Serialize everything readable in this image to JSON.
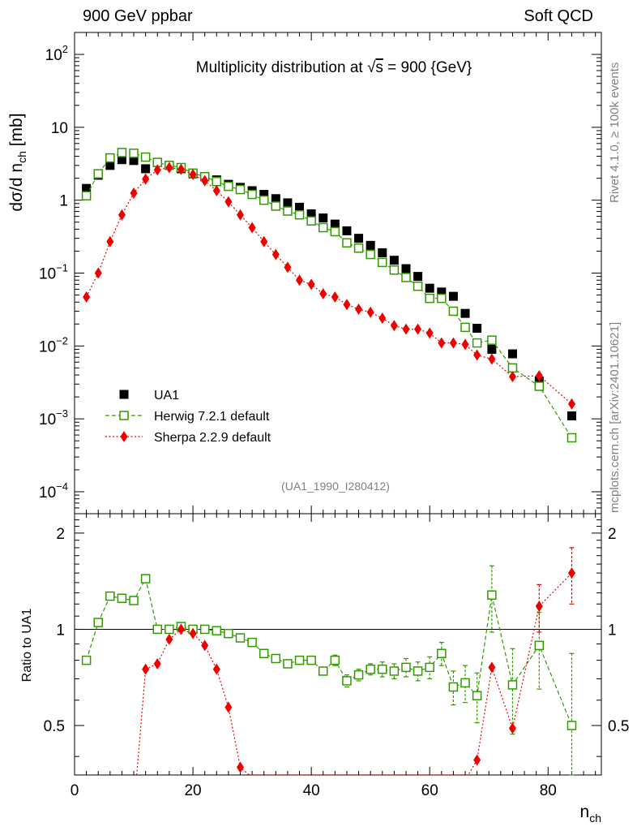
{
  "chart_data": {
    "type": "scatter",
    "title": "Multiplicity distribution at √s = 900 {GeV}",
    "title_prefix": "Multiplicity distribution at ",
    "title_sqrt": "√",
    "title_s": "s",
    "title_suffix": " = 900 {GeV}",
    "header_left": "900 GeV ppbar",
    "header_right": "Soft QCD",
    "side_top": "Rivet 4.1.0, ≥ 100k events",
    "side_bottom": "mcplots.cern.ch [arXiv:2401.10621]",
    "analysis_id": "(UA1_1990_I280412)",
    "ylabel_main_a": "dσ/d n",
    "ylabel_main_sub": "ch",
    "ylabel_main_b": " [mb]",
    "ylabel_ratio": "Ratio to UA1",
    "xlabel": "n",
    "xlabel_sub": "ch",
    "xlim": [
      0,
      89
    ],
    "ylim_main": [
      5e-05,
      200
    ],
    "ylim_ratio": [
      0.35,
      2.3
    ],
    "x_ticks": [
      0,
      20,
      40,
      60,
      80
    ],
    "x_tick_labels": [
      "0",
      "20",
      "40",
      "60",
      "80"
    ],
    "main_ticks": [
      {
        "v": 100,
        "base": "10",
        "exp": "2"
      },
      {
        "v": 10,
        "base": "10",
        "exp": ""
      },
      {
        "v": 1,
        "base": "1",
        "exp": ""
      },
      {
        "v": 0.1,
        "base": "10",
        "exp": "−1"
      },
      {
        "v": 0.01,
        "base": "10",
        "exp": "−2"
      },
      {
        "v": 0.001,
        "base": "10",
        "exp": "−3"
      },
      {
        "v": 0.0001,
        "base": "10",
        "exp": "−4"
      }
    ],
    "ratio_ticks": [
      {
        "v": 2,
        "label": "2"
      },
      {
        "v": 1,
        "label": "1"
      },
      {
        "v": 0.5,
        "label": "0.5"
      }
    ],
    "legend": [
      {
        "label": "UA1",
        "color": "#000000",
        "marker": "square-filled"
      },
      {
        "label": "Herwig 7.2.1 default",
        "color": "#339900",
        "marker": "square-open"
      },
      {
        "label": "Sherpa 2.2.9 default",
        "color": "#ee0000",
        "marker": "diamond"
      }
    ],
    "x": [
      2,
      4,
      6,
      8,
      10,
      12,
      14,
      16,
      18,
      20,
      22,
      24,
      26,
      28,
      30,
      32,
      34,
      36,
      38,
      40,
      42,
      44,
      46,
      48,
      50,
      52,
      54,
      56,
      58,
      60,
      62,
      64,
      66,
      68,
      70.5,
      74,
      78.5,
      84
    ],
    "series": [
      {
        "name": "UA1",
        "color": "#000000",
        "values": [
          1.45,
          2.2,
          3.0,
          3.6,
          3.5,
          2.7,
          3.3,
          3.0,
          2.7,
          2.3,
          2.1,
          1.9,
          1.65,
          1.5,
          1.35,
          1.2,
          1.05,
          0.92,
          0.8,
          0.65,
          0.57,
          0.47,
          0.38,
          0.3,
          0.24,
          0.19,
          0.15,
          0.115,
          0.09,
          0.062,
          0.055,
          0.048,
          0.028,
          0.0175,
          0.009,
          0.0078,
          0.0033,
          0.0011
        ]
      },
      {
        "name": "Herwig 7.2.1 default",
        "color": "#339900",
        "values": [
          1.15,
          2.3,
          3.8,
          4.5,
          4.4,
          3.9,
          3.3,
          3.0,
          2.8,
          2.35,
          2.1,
          1.8,
          1.55,
          1.4,
          1.2,
          1.0,
          0.83,
          0.71,
          0.63,
          0.52,
          0.42,
          0.37,
          0.26,
          0.22,
          0.18,
          0.14,
          0.11,
          0.087,
          0.066,
          0.045,
          0.045,
          0.03,
          0.018,
          0.011,
          0.012,
          0.005,
          0.0028,
          0.00055
        ]
      },
      {
        "name": "Sherpa 2.2.9 default",
        "color": "#ee0000",
        "values": [
          0.047,
          0.1,
          0.27,
          0.63,
          1.25,
          1.95,
          2.6,
          2.8,
          2.65,
          2.25,
          1.85,
          1.35,
          0.95,
          0.63,
          0.42,
          0.27,
          0.18,
          0.12,
          0.08,
          0.07,
          0.052,
          0.047,
          0.037,
          0.032,
          0.029,
          0.024,
          0.019,
          0.017,
          0.017,
          0.015,
          0.011,
          0.011,
          0.0105,
          0.0075,
          0.0066,
          0.0038,
          0.0039,
          0.0016
        ]
      }
    ],
    "ratio_series": [
      {
        "name": "Herwig 7.2.1 default",
        "color": "#339900",
        "x": [
          2,
          4,
          6,
          8,
          10,
          12,
          14,
          16,
          18,
          20,
          22,
          24,
          26,
          28,
          30,
          32,
          34,
          36,
          38,
          40,
          42,
          44,
          46,
          48,
          50,
          52,
          54,
          56,
          58,
          60,
          62,
          64,
          66,
          68,
          70.5,
          74,
          78.5,
          84
        ],
        "values": [
          0.8,
          1.05,
          1.27,
          1.25,
          1.23,
          1.44,
          1.0,
          1.0,
          1.02,
          1.0,
          1.0,
          0.99,
          0.97,
          0.94,
          0.91,
          0.84,
          0.81,
          0.78,
          0.8,
          0.8,
          0.74,
          0.8,
          0.69,
          0.72,
          0.75,
          0.75,
          0.74,
          0.76,
          0.74,
          0.76,
          0.84,
          0.66,
          0.68,
          0.62,
          1.28,
          0.67,
          0.89,
          0.5
        ],
        "errors": [
          0,
          0,
          0,
          0,
          0,
          0,
          0,
          0,
          0,
          0,
          0,
          0,
          0,
          0,
          0,
          0,
          0,
          0,
          0,
          0,
          0.02,
          0.03,
          0.03,
          0.03,
          0.03,
          0.04,
          0.04,
          0.05,
          0.05,
          0.06,
          0.07,
          0.08,
          0.09,
          0.11,
          0.3,
          0.2,
          0.24,
          0.34
        ]
      },
      {
        "name": "Sherpa 2.2.9 default",
        "color": "#ee0000",
        "x": [
          10.5,
          12,
          14,
          16,
          18,
          20,
          22,
          24,
          26,
          28,
          29.5,
          66.5,
          68,
          70.5,
          74,
          78.5,
          84
        ],
        "values": [
          0.3,
          0.75,
          0.78,
          0.93,
          1.0,
          0.97,
          0.89,
          0.75,
          0.57,
          0.37,
          0.3,
          0.3,
          0.39,
          0.76,
          0.49,
          1.18,
          1.5
        ],
        "errors": [
          0,
          0,
          0,
          0,
          0,
          0,
          0,
          0,
          0,
          0,
          0,
          0,
          0,
          0,
          0,
          0.2,
          0.3
        ]
      }
    ]
  }
}
